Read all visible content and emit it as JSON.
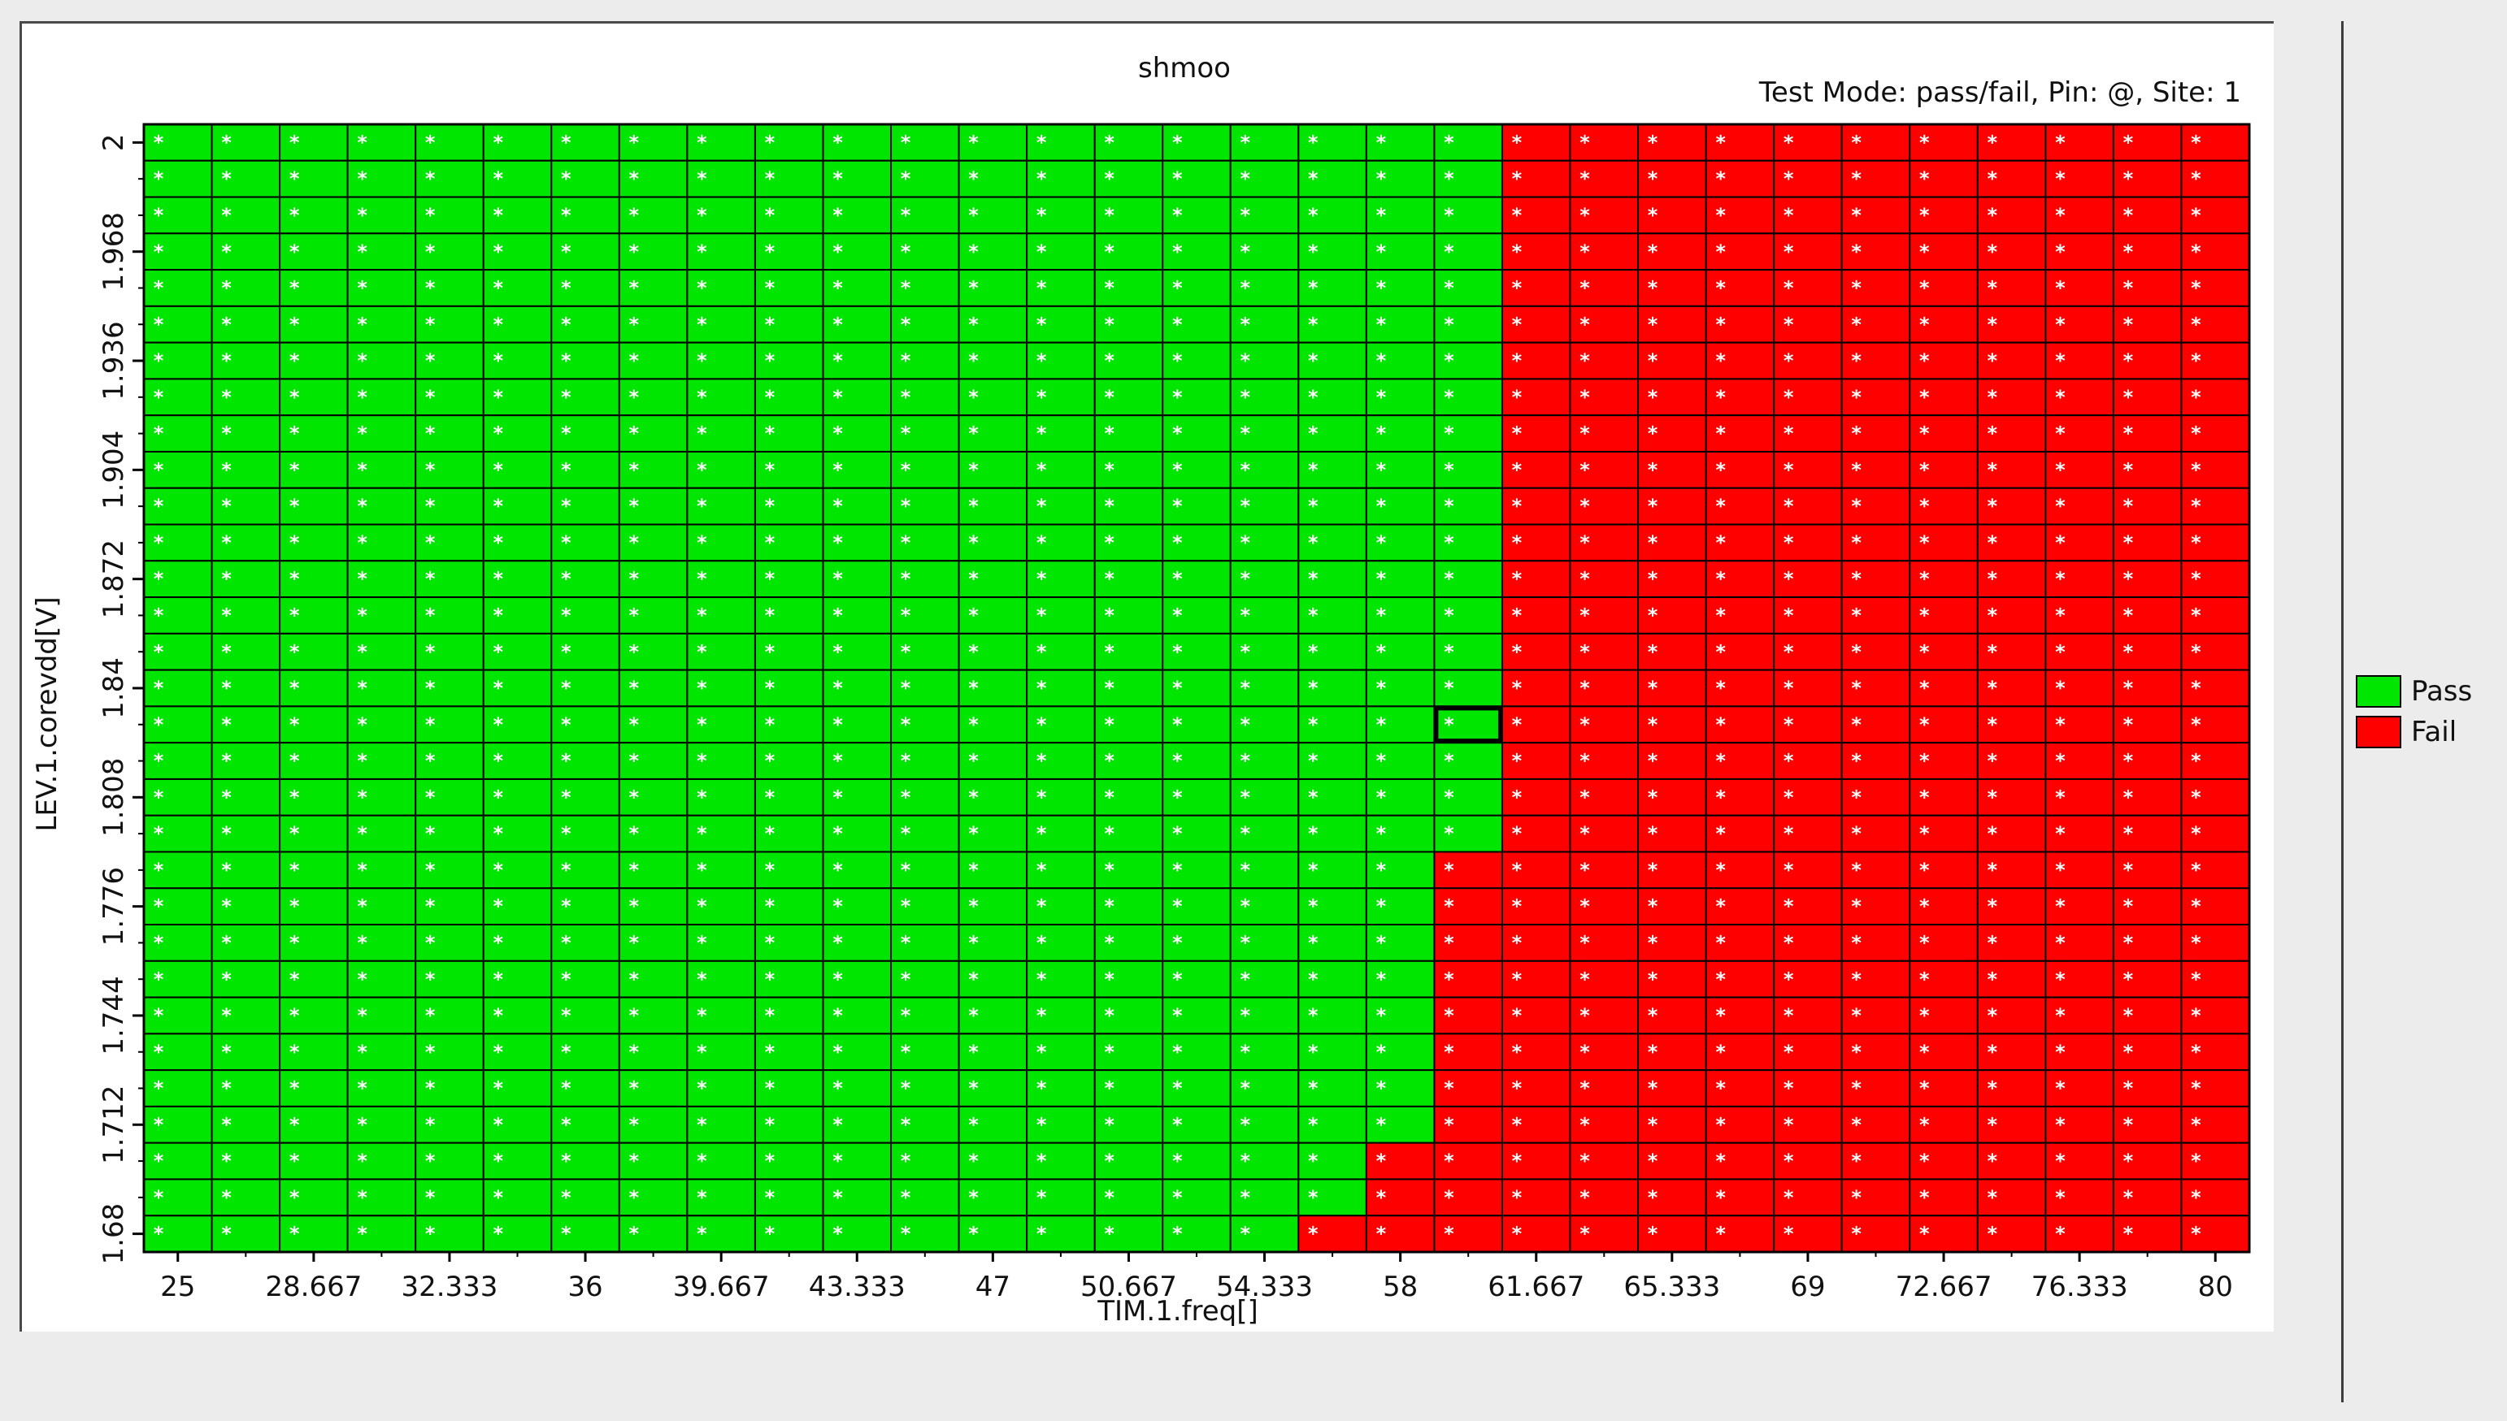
{
  "chart_data": {
    "type": "heatmap",
    "title": "shmoo",
    "subtitle": "Test Mode: pass/fail, Pin: @, Site: 1",
    "xlabel": "TIM.1.freq[]",
    "ylabel": "LEV.1.corevdd[V]",
    "x_tick_labels": [
      "25",
      "28.667",
      "32.333",
      "36",
      "39.667",
      "43.333",
      "47",
      "50.667",
      "54.333",
      "58",
      "61.667",
      "65.333",
      "69",
      "72.667",
      "76.333",
      "80"
    ],
    "y_tick_labels": [
      "2",
      "1.968",
      "1.936",
      "1.904",
      "1.872",
      "1.84",
      "1.808",
      "1.776",
      "1.744",
      "1.712",
      "1.68"
    ],
    "x_range": [
      25,
      80
    ],
    "y_range": [
      1.68,
      2
    ],
    "n_cols": 31,
    "n_rows": 31,
    "cell_marker": "*",
    "pass_columns_per_row": [
      20,
      20,
      20,
      20,
      20,
      20,
      20,
      20,
      20,
      20,
      20,
      20,
      20,
      20,
      20,
      20,
      20,
      20,
      20,
      20,
      19,
      19,
      19,
      19,
      19,
      19,
      19,
      19,
      18,
      18,
      17
    ],
    "selected_cell": {
      "row": 16,
      "col": 19
    },
    "legend": [
      {
        "name": "Pass",
        "color": "#00e600"
      },
      {
        "name": "Fail",
        "color": "#ff0000"
      }
    ],
    "grid": true
  },
  "colors": {
    "pass": "#00e600",
    "fail": "#ff0000",
    "cell_border": "#000000",
    "marker": "#ffffff"
  }
}
